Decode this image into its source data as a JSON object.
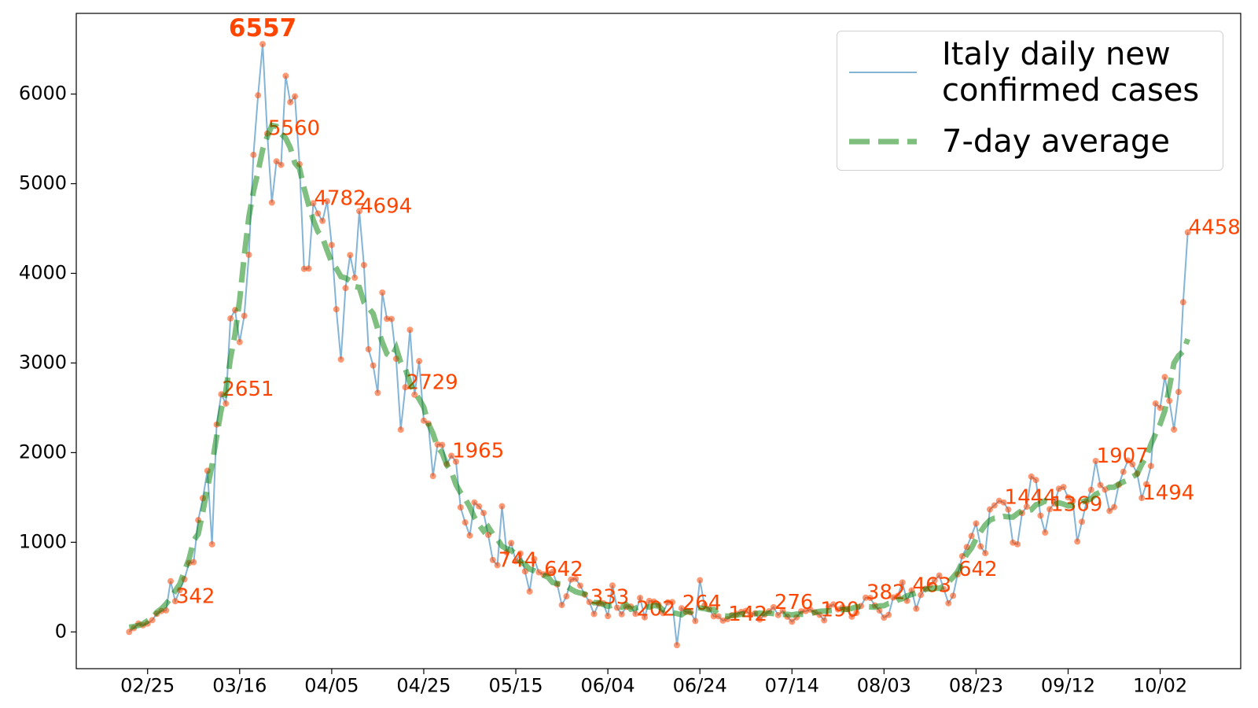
{
  "chart_data": {
    "type": "line",
    "x": [
      "02/21",
      "02/22",
      "02/23",
      "02/24",
      "02/25",
      "02/26",
      "02/27",
      "02/28",
      "02/29",
      "03/01",
      "03/02",
      "03/03",
      "03/04",
      "03/05",
      "03/06",
      "03/07",
      "03/08",
      "03/09",
      "03/10",
      "03/11",
      "03/12",
      "03/13",
      "03/14",
      "03/15",
      "03/16",
      "03/17",
      "03/18",
      "03/19",
      "03/20",
      "03/21",
      "03/22",
      "03/23",
      "03/24",
      "03/25",
      "03/26",
      "03/27",
      "03/28",
      "03/29",
      "03/30",
      "03/31",
      "04/01",
      "04/02",
      "04/03",
      "04/04",
      "04/05",
      "04/06",
      "04/07",
      "04/08",
      "04/09",
      "04/10",
      "04/11",
      "04/12",
      "04/13",
      "04/14",
      "04/15",
      "04/16",
      "04/17",
      "04/18",
      "04/19",
      "04/20",
      "04/21",
      "04/22",
      "04/23",
      "04/24",
      "04/25",
      "04/26",
      "04/27",
      "04/28",
      "04/29",
      "04/30",
      "05/01",
      "05/02",
      "05/03",
      "05/04",
      "05/05",
      "05/06",
      "05/07",
      "05/08",
      "05/09",
      "05/10",
      "05/11",
      "05/12",
      "05/13",
      "05/14",
      "05/15",
      "05/16",
      "05/17",
      "05/18",
      "05/19",
      "05/20",
      "05/21",
      "05/22",
      "05/23",
      "05/24",
      "05/25",
      "05/26",
      "05/27",
      "05/28",
      "05/29",
      "05/30",
      "05/31",
      "06/01",
      "06/02",
      "06/03",
      "06/04",
      "06/05",
      "06/06",
      "06/07",
      "06/08",
      "06/09",
      "06/10",
      "06/11",
      "06/12",
      "06/13",
      "06/14",
      "06/15",
      "06/16",
      "06/17",
      "06/18",
      "06/19",
      "06/20",
      "06/21",
      "06/22",
      "06/23",
      "06/24",
      "06/25",
      "06/26",
      "06/27",
      "06/28",
      "06/29",
      "06/30",
      "07/01",
      "07/02",
      "07/03",
      "07/04",
      "07/05",
      "07/06",
      "07/07",
      "07/08",
      "07/09",
      "07/10",
      "07/11",
      "07/12",
      "07/13",
      "07/14",
      "07/15",
      "07/16",
      "07/17",
      "07/18",
      "07/19",
      "07/20",
      "07/21",
      "07/22",
      "07/23",
      "07/24",
      "07/25",
      "07/26",
      "07/27",
      "07/28",
      "07/29",
      "07/30",
      "07/31",
      "08/01",
      "08/02",
      "08/03",
      "08/04",
      "08/05",
      "08/06",
      "08/07",
      "08/08",
      "08/09",
      "08/10",
      "08/11",
      "08/12",
      "08/13",
      "08/14",
      "08/15",
      "08/16",
      "08/17",
      "08/18",
      "08/19",
      "08/20",
      "08/21",
      "08/22",
      "08/23",
      "08/24",
      "08/25",
      "08/26",
      "08/27",
      "08/28",
      "08/29",
      "08/30",
      "08/31",
      "09/01",
      "09/02",
      "09/03",
      "09/04",
      "09/05",
      "09/06",
      "09/07",
      "09/08",
      "09/09",
      "09/10",
      "09/11",
      "09/12",
      "09/13",
      "09/14",
      "09/15",
      "09/16",
      "09/17",
      "09/18",
      "09/19",
      "09/20",
      "09/21",
      "09/22",
      "09/23",
      "09/24",
      "09/25",
      "09/26",
      "09/27",
      "09/28",
      "09/29",
      "09/30",
      "10/01",
      "10/02",
      "10/03",
      "10/04",
      "10/05",
      "10/06",
      "10/07",
      "10/08"
    ],
    "xticks": [
      "02/25",
      "03/16",
      "04/05",
      "04/25",
      "05/15",
      "06/04",
      "06/24",
      "07/14",
      "08/03",
      "08/23",
      "09/12",
      "10/02"
    ],
    "ylim": [
      -410,
      6900
    ],
    "yticks": [
      0,
      1000,
      2000,
      3000,
      4000,
      5000,
      6000
    ],
    "legend": "upper right",
    "label_color": "#ff4500",
    "series": [
      {
        "name": "Italy daily new\nconfirmed cases",
        "color": "#1f77b4",
        "marker_color": "#ff4500",
        "values": [
          0,
          42,
          93,
          74,
          93,
          131,
          202,
          233,
          240,
          566,
          342,
          466,
          587,
          769,
          778,
          1247,
          1492,
          1797,
          977,
          2313,
          2651,
          2547,
          3497,
          3590,
          3233,
          3526,
          4207,
          5322,
          5986,
          6557,
          5560,
          4789,
          5249,
          5210,
          6203,
          5909,
          5974,
          5217,
          4050,
          4053,
          4782,
          4668,
          4585,
          4805,
          4316,
          3599,
          3039,
          3836,
          4204,
          3951,
          4694,
          4092,
          3153,
          2972,
          2667,
          3786,
          3493,
          3491,
          3047,
          2256,
          2729,
          3370,
          2646,
          3021,
          2357,
          2324,
          1739,
          2091,
          2086,
          1872,
          1965,
          1900,
          1389,
          1221,
          1075,
          1444,
          1401,
          1327,
          1083,
          802,
          744,
          1402,
          888,
          992,
          789,
          875,
          675,
          451,
          813,
          665,
          642,
          652,
          669,
          531,
          300,
          397,
          584,
          593,
          516,
          416,
          333,
          200,
          318,
          321,
          177,
          518,
          270,
          197,
          280,
          283,
          202,
          379,
          163,
          346,
          338,
          301,
          210,
          329,
          333,
          -148,
          264,
          224,
          218,
          122,
          577,
          296,
          259,
          175,
          174,
          126,
          142,
          187,
          201,
          223,
          235,
          192,
          208,
          138,
          193,
          229,
          276,
          188,
          234,
          169,
          114,
          162,
          230,
          233,
          249,
          219,
          190,
          129,
          282,
          306,
          252,
          275,
          255,
          170,
          212,
          289,
          382,
          379,
          295,
          239,
          159,
          190,
          384,
          402,
          552,
          347,
          463,
          259,
          412,
          481,
          523,
          574,
          629,
          479,
          320,
          403,
          642,
          845,
          947,
          1071,
          1210,
          953,
          878,
          1367,
          1411,
          1462,
          1444,
          1365,
          996,
          978,
          1326,
          1397,
          1733,
          1695,
          1297,
          1108,
          1369,
          1434,
          1597,
          1616,
          1501,
          1458,
          1008,
          1229,
          1452,
          1585,
          1907,
          1638,
          1587,
          1350,
          1392,
          1640,
          1786,
          1912,
          1869,
          1766,
          1494,
          1648,
          1851,
          2548,
          2499,
          2844,
          2578,
          2257,
          2677,
          3678,
          4458
        ]
      },
      {
        "name": "7-day average",
        "color": "#008000",
        "style": "dashed",
        "values": [
          52.3,
          60.4,
          72.2,
          90.7,
          124.0,
          152.3,
          219.9,
          258.1,
          311.4,
          376.6,
          457.6,
          535.4,
          679.3,
          811.6,
          1019.4,
          1092.4,
          1339.0,
          1607.9,
          1860.6,
          2182.0,
          2481.7,
          2686.9,
          3051.0,
          3321.6,
          3703.1,
          4194.4,
          4631.6,
          4913.0,
          5135.3,
          5381.4,
          5524.7,
          5650.6,
          5639.6,
          5556.3,
          5507.3,
          5401.7,
          5230.9,
          5169.7,
          4950.4,
          4761.3,
          4594.3,
          4465.6,
          4401.1,
          4256.3,
          4121.1,
          4054.9,
          3964.3,
          3948.4,
          3916.4,
          3852.7,
          3843.1,
          3676.1,
          3616.4,
          3551.0,
          3379.1,
          3229.9,
          3101.7,
          3067.0,
          3167.4,
          3004.6,
          2937.1,
          2775.1,
          2671.9,
          2598.0,
          2506.9,
          2323.4,
          2212.9,
          2062.0,
          1996.7,
          1863.1,
          1789.1,
          1644.0,
          1552.3,
          1485.0,
          1393.9,
          1277.1,
          1193.3,
          1125.1,
          1171.9,
          1092.4,
          1034.0,
          957.1,
          927.4,
          909.3,
          867.4,
          783.3,
          751.4,
          701.4,
          681.9,
          652.4,
          631.9,
          610.3,
          550.9,
          539.3,
          532.3,
          512.9,
          476.7,
          448.4,
          434.1,
          422.9,
          385.3,
          325.9,
          326.1,
          305.3,
          285.9,
          297.3,
          292.3,
          275.3,
          304.1,
          253.4,
          264.3,
          284.4,
          287.4,
          277.0,
          295.1,
          288.6,
          244.1,
          232.4,
          216.1,
          204.3,
          191.7,
          227.1,
          221.9,
          280.0,
          267.3,
          260.1,
          247.0,
          249.9,
          194.1,
          180.6,
          175.4,
          184.0,
          186.6,
          198.3,
          197.7,
          198.6,
          202.6,
          210.1,
          203.4,
          209.4,
          203.9,
          200.4,
          196.0,
          196.1,
          190.0,
          198.7,
          196.6,
          199.6,
          201.7,
          218.9,
          229.7,
          232.4,
          236.1,
          241.3,
          238.4,
          250.3,
          251.3,
          262.1,
          280.3,
          283.1,
          280.9,
          279.3,
          276.1,
          289.7,
          292.6,
          317.3,
          324.7,
          356.7,
          371.0,
          402.7,
          416.6,
          433.9,
          437.0,
          477.3,
          479.6,
          488.3,
          487.0,
          510.0,
          556.0,
          609.3,
          672.4,
          776.9,
          867.3,
          935.1,
          1038.7,
          1119.6,
          1193.1,
          1246.4,
          1268.6,
          1274.7,
          1289.0,
          1283.1,
          1281.1,
          1319.9,
          1355.7,
          1346.0,
          1362.0,
          1417.9,
          1433.3,
          1461.9,
          1445.1,
          1417.4,
          1440.4,
          1426.1,
          1406.1,
          1408.7,
          1407.0,
          1448.6,
          1468.1,
          1486.6,
          1535.4,
          1558.7,
          1585.6,
          1614.3,
          1615.0,
          1648.0,
          1673.6,
          1694.1,
          1730.7,
          1760.9,
          1869.7,
          1953.6,
          2092.9,
          2208.9,
          2317.9,
          2464.9,
          2725.9,
          2998.7,
          3082.0,
          3129.6,
          3267.5
        ]
      }
    ]
  }
}
